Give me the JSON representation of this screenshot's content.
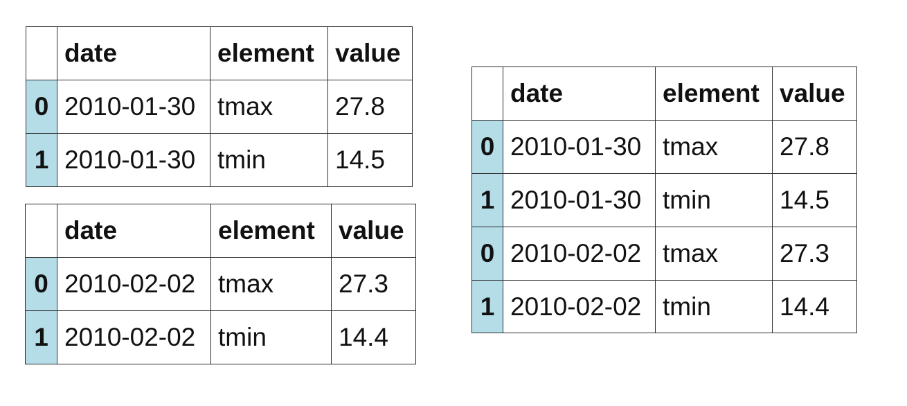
{
  "tables": [
    {
      "headers": [
        "date",
        "element",
        "value"
      ],
      "rows": [
        {
          "index": "0",
          "date": "2010-01-30",
          "element": "tmax",
          "value": "27.8"
        },
        {
          "index": "1",
          "date": "2010-01-30",
          "element": "tmin",
          "value": "14.5"
        }
      ]
    },
    {
      "headers": [
        "date",
        "element",
        "value"
      ],
      "rows": [
        {
          "index": "0",
          "date": "2010-02-02",
          "element": "tmax",
          "value": "27.3"
        },
        {
          "index": "1",
          "date": "2010-02-02",
          "element": "tmin",
          "value": "14.4"
        }
      ]
    },
    {
      "headers": [
        "date",
        "element",
        "value"
      ],
      "rows": [
        {
          "index": "0",
          "date": "2010-01-30",
          "element": "tmax",
          "value": "27.8"
        },
        {
          "index": "1",
          "date": "2010-01-30",
          "element": "tmin",
          "value": "14.5"
        },
        {
          "index": "0",
          "date": "2010-02-02",
          "element": "tmax",
          "value": "27.3"
        },
        {
          "index": "1",
          "date": "2010-02-02",
          "element": "tmin",
          "value": "14.4"
        }
      ]
    }
  ],
  "colors": {
    "index_highlight": "#b5dde8",
    "border": "#2a2a2a"
  }
}
